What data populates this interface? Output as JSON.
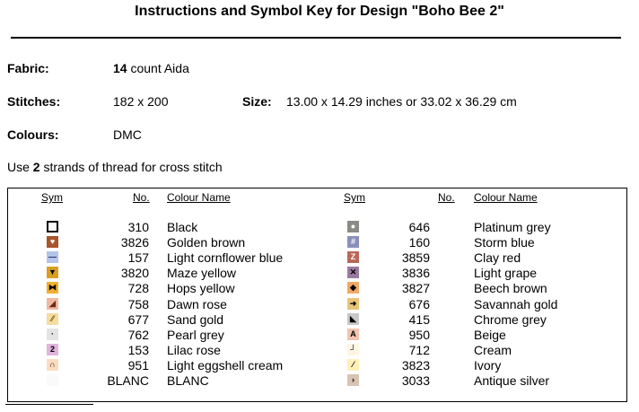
{
  "title": "Instructions and Symbol Key for Design \"Boho Bee 2\"",
  "fabric": {
    "label": "Fabric:",
    "count": "14",
    "text": "count Aida"
  },
  "stitches": {
    "label": "Stitches:",
    "value": "182 x 200"
  },
  "size": {
    "label": "Size:",
    "value": "13.00 x 14.29 inches or 33.02 x 36.29 cm"
  },
  "colours": {
    "label": "Colours:",
    "value": "DMC"
  },
  "instruction": {
    "prefix": "Use",
    "strands": "2",
    "suffix": "strands of thread for cross stitch"
  },
  "table": {
    "headers": {
      "sym": "Sym",
      "no": "No.",
      "name": "Colour Name"
    },
    "left": [
      {
        "no": "310",
        "name": "Black",
        "icon": "square-outline-icon",
        "bg": "#ffffff",
        "fg": "#000000",
        "glyph": ""
      },
      {
        "no": "3826",
        "name": "Golden brown",
        "icon": "heart-icon",
        "bg": "#a8552a",
        "fg": "#ffffff",
        "glyph": "♥"
      },
      {
        "no": "157",
        "name": "Light cornflower blue",
        "icon": "dash-icon",
        "bg": "#b4c4e8",
        "fg": "#1a2a6a",
        "glyph": "—"
      },
      {
        "no": "3820",
        "name": "Maze yellow",
        "icon": "triangle-down-icon",
        "bg": "#d8a020",
        "fg": "#000000",
        "glyph": "▼"
      },
      {
        "no": "728",
        "name": "Hops yellow",
        "icon": "bowtie-icon",
        "bg": "#f0b030",
        "fg": "#000000",
        "glyph": "⧓"
      },
      {
        "no": "758",
        "name": "Dawn rose",
        "icon": "half-triangle-icon",
        "bg": "#f0b8a0",
        "fg": "#6a2a1a",
        "glyph": "◢"
      },
      {
        "no": "677",
        "name": "Sand gold",
        "icon": "diagonal-lines-icon",
        "bg": "#f5dca0",
        "fg": "#7a5a10",
        "glyph": "⁄⁄"
      },
      {
        "no": "762",
        "name": "Pearl grey",
        "icon": "dot-icon",
        "bg": "#e4e4e4",
        "fg": "#000000",
        "glyph": "·"
      },
      {
        "no": "153",
        "name": "Lilac rose",
        "icon": "two-icon",
        "bg": "#e0b4dc",
        "fg": "#000000",
        "glyph": "2"
      },
      {
        "no": "951",
        "name": "Light eggshell cream",
        "icon": "arch-icon",
        "bg": "#fcdcc0",
        "fg": "#000000",
        "glyph": "∩"
      },
      {
        "no": "BLANC",
        "name": "BLANC",
        "icon": "blank-square-icon",
        "bg": "#fafafa",
        "fg": "#000000",
        "glyph": ""
      }
    ],
    "right": [
      {
        "no": "646",
        "name": "Platinum grey",
        "icon": "circle-icon",
        "bg": "#8a8a86",
        "fg": "#ffffff",
        "glyph": "●"
      },
      {
        "no": "160",
        "name": "Storm blue",
        "icon": "hash-icon",
        "bg": "#8890b8",
        "fg": "#ffffff",
        "glyph": "#"
      },
      {
        "no": "3859",
        "name": "Clay red",
        "icon": "z-icon",
        "bg": "#b8685a",
        "fg": "#ffffff",
        "glyph": "Z"
      },
      {
        "no": "3836",
        "name": "Light grape",
        "icon": "x-mark-icon",
        "bg": "#9a7aa0",
        "fg": "#000000",
        "glyph": "✕"
      },
      {
        "no": "3827",
        "name": "Beech brown",
        "icon": "diamond-icon",
        "bg": "#f0a868",
        "fg": "#000000",
        "glyph": "◆"
      },
      {
        "no": "676",
        "name": "Savannah gold",
        "icon": "arrow-right-icon",
        "bg": "#e8c478",
        "fg": "#000000",
        "glyph": "➜"
      },
      {
        "no": "415",
        "name": "Chrome grey",
        "icon": "corner-triangle-icon",
        "bg": "#c8c8c8",
        "fg": "#000000",
        "glyph": "◣"
      },
      {
        "no": "950",
        "name": "Beige",
        "icon": "letter-a-icon",
        "bg": "#f0c4b0",
        "fg": "#000000",
        "glyph": "A"
      },
      {
        "no": "712",
        "name": "Cream",
        "icon": "corner-bracket-icon",
        "bg": "#fff4e4",
        "fg": "#000000",
        "glyph": "┘"
      },
      {
        "no": "3823",
        "name": "Ivory",
        "icon": "slash-icon",
        "bg": "#fff0b8",
        "fg": "#000000",
        "glyph": "⁄"
      },
      {
        "no": "3033",
        "name": "Antique silver",
        "icon": "chevron-right-icon",
        "bg": "#d8c4b4",
        "fg": "#000000",
        "glyph": "›"
      }
    ]
  }
}
